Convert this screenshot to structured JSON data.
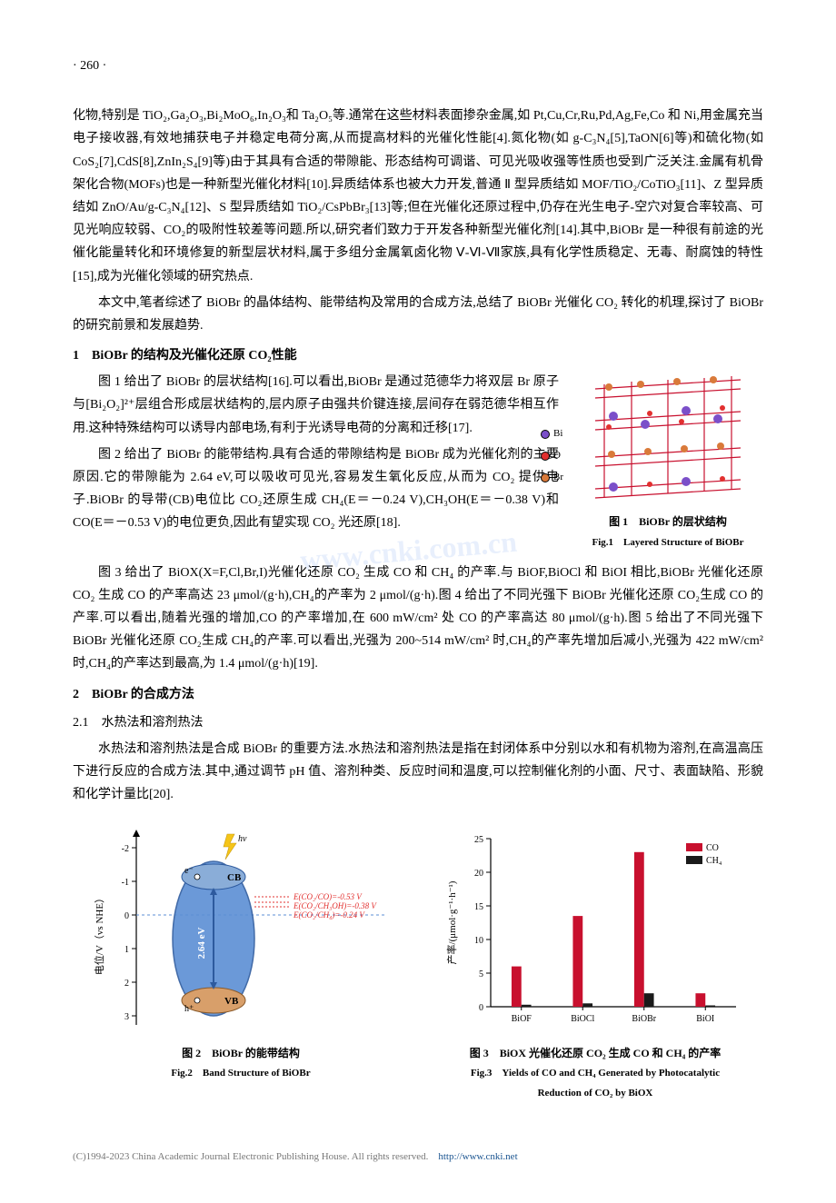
{
  "pageNumber": "· 260 ·",
  "paragraph1": "化物,特别是 TiO₂,Ga₂O₃,Bi₂MoO₆,In₂O₃和 Ta₂O₅等.通常在这些材料表面掺杂金属,如 Pt,Cu,Cr,Ru,Pd,Ag,Fe,Co 和 Ni,用金属充当电子接收器,有效地捕获电子并稳定电荷分离,从而提高材料的光催化性能[4].氮化物(如 g-C₃N₄[5],TaON[6]等)和硫化物(如 CoS₂[7],CdS[8],ZnIn₂S₄[9]等)由于其具有合适的带隙能、形态结构可调谐、可见光吸收强等性质也受到广泛关注.金属有机骨架化合物(MOFs)也是一种新型光催化材料[10].异质结体系也被大力开发,普通 Ⅱ 型异质结如 MOF/TiO₂/CoTiO₃[11]、Z 型异质结如 ZnO/Au/g-C₃N₄[12]、S 型异质结如 TiO₂/CsPbBr₃[13]等;但在光催化还原过程中,仍存在光生电子-空穴对复合率较高、可见光响应较弱、CO₂的吸附性较差等问题.所以,研究者们致力于开发各种新型光催化剂[14].其中,BiOBr 是一种很有前途的光催化能量转化和环境修复的新型层状材料,属于多组分金属氧卤化物 Ⅴ-Ⅵ-Ⅶ家族,具有化学性质稳定、无毒、耐腐蚀的特性[15],成为光催化领域的研究热点.",
  "paragraph2": "本文中,笔者综述了 BiOBr 的晶体结构、能带结构及常用的合成方法,总结了 BiOBr 光催化 CO₂ 转化的机理,探讨了 BiOBr 的研究前景和发展趋势.",
  "section1": {
    "heading": "1　BiOBr 的结构及光催化还原 CO₂性能",
    "p1": "图 1 给出了 BiOBr 的层状结构[16].可以看出,BiOBr 是通过范德华力将双层 Br 原子与[Bi₂O₂]²⁺层组合形成层状结构的,层内原子由强共价键连接,层间存在弱范德华相互作用.这种特殊结构可以诱导内部电场,有利于光诱导电荷的分离和迁移[17].",
    "p2": "图 2 给出了 BiOBr 的能带结构.具有合适的带隙结构是 BiOBr 成为光催化剂的主要原因.它的带隙能为 2.64 eV,可以吸收可见光,容易发生氧化反应,从而为 CO₂ 提供电子.BiOBr 的导带(CB)电位比 CO₂还原生成 CH₄(E＝－0.24 V),CH₃OH(E＝－0.38 V)和 CO(E＝－0.53 V)的电位更负,因此有望实现 CO₂ 光还原[18].",
    "p3": "图 3 给出了 BiOX(X=F,Cl,Br,I)光催化还原 CO₂ 生成 CO 和 CH₄ 的产率.与 BiOF,BiOCl 和 BiOI 相比,BiOBr 光催化还原 CO₂ 生成 CO 的产率高达 23 μmol/(g·h),CH₄的产率为 2 μmol/(g·h).图 4 给出了不同光强下 BiOBr 光催化还原 CO₂生成 CO 的产率.可以看出,随着光强的增加,CO 的产率增加,在 600 mW/cm² 处 CO 的产率高达 80 μmol/(g·h).图 5 给出了不同光强下 BiOBr 光催化还原 CO₂生成 CH₄的产率.可以看出,光强为 200~514 mW/cm² 时,CH₄的产率先增加后减小,光强为 422 mW/cm² 时,CH₄的产率达到最高,为 1.4 μmol/(g·h)[19]."
  },
  "section2": {
    "heading": "2　BiOBr 的合成方法",
    "sub1": "2.1　水热法和溶剂热法",
    "p1": "水热法和溶剂热法是合成 BiOBr 的重要方法.水热法和溶剂热法是指在封闭体系中分别以水和有机物为溶剂,在高温高压下进行反应的合成方法.其中,通过调节 pH 值、溶剂种类、反应时间和温度,可以控制催化剂的小面、尺寸、表面缺陷、形貌和化学计量比[20]."
  },
  "figure1": {
    "caption_cn": "图 1　BiOBr 的层状结构",
    "caption_en": "Fig.1　Layered Structure of BiOBr",
    "legend": {
      "Bi": {
        "label": "Bi",
        "color": "#7b4fc9"
      },
      "O": {
        "label": "O",
        "color": "#e2302f"
      },
      "Br": {
        "label": "Br",
        "color": "#d97a3a"
      }
    },
    "bond_color": "#c8102e",
    "background": "#ffffff"
  },
  "figure2": {
    "caption_cn": "图 2　BiOBr 的能带结构",
    "caption_en": "Fig.2　Band Structure of BiOBr",
    "ylabel": "电位/V（vs NHE）",
    "yticks": [
      -2,
      -1,
      0,
      1,
      2,
      3
    ],
    "band_gap_label": "2.64 eV",
    "cb_label": "CB",
    "vb_label": "VB",
    "electron_label": "e⁻",
    "hole_label": "h⁺",
    "annotations": [
      {
        "text": "E(CO₂/CO)=-0.53 V",
        "y": -0.53,
        "color": "#e2302f"
      },
      {
        "text": "E(CO₂/CH₃OH)=-0.38 V",
        "y": -0.38,
        "color": "#e2302f"
      },
      {
        "text": "E(CO₂/CH₄)=-0.24 V",
        "y": -0.24,
        "color": "#e2302f"
      }
    ],
    "oval_fill": "#5b8fd4",
    "oval_stroke": "#2d5a9e",
    "cb_fill": "#8aadd8",
    "vb_fill": "#d89f6a",
    "arrow_color": "#2d5a9e",
    "light_bolt_color": "#f5c518",
    "axis_color": "#000000",
    "annotation_fontsize": 9,
    "label_fontsize": 11,
    "ylim": [
      -2.5,
      3.2
    ]
  },
  "figure3": {
    "caption_cn": "图 3　BiOX 光催化还原 CO₂ 生成 CO 和 CH₄ 的产率",
    "caption_en": "Fig.3　Yields of CO and CH₄ Generated by Photocatalytic",
    "caption_en2": "Reduction of CO₂ by BiOX",
    "ylabel": "产率/(μmol·g⁻¹·h⁻¹)",
    "categories": [
      "BiOF",
      "BiOCl",
      "BiOBr",
      "BiOI"
    ],
    "series": [
      {
        "name": "CO",
        "color": "#c8102e",
        "values": [
          6,
          13.5,
          23,
          2
        ]
      },
      {
        "name": "CH₄",
        "color": "#1a1a1a",
        "values": [
          0.3,
          0.5,
          2,
          0.2
        ]
      }
    ],
    "ylim": [
      0,
      25
    ],
    "ytick_step": 5,
    "bar_width": 0.32,
    "axis_color": "#000000",
    "label_fontsize": 11,
    "tick_fontsize": 10,
    "legend_fontsize": 10,
    "background": "#ffffff"
  },
  "watermark": "www.cnki.com.cn",
  "footer": {
    "text": "(C)1994-2023 China Academic Journal Electronic Publishing House. All rights reserved.",
    "url_text": "http://www.cnki.net",
    "url": "http://www.cnki.net"
  }
}
